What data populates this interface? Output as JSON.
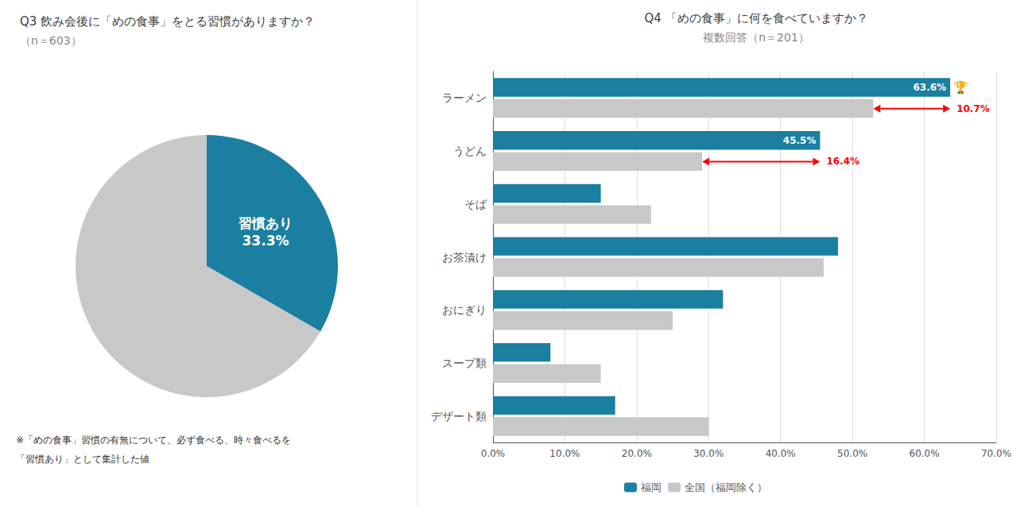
{
  "chart_data": [
    {
      "type": "pie",
      "title": "Q3 飲み会後に「めの食事」をとる習慣がありますか？",
      "subtitle": "（n＝603）",
      "categories": [
        "習慣あり",
        null
      ],
      "values": [
        33.3,
        66.7
      ],
      "value_labels": [
        "33.3%",
        null
      ],
      "colors": [
        "#1a7fa0",
        "#c8c8c8"
      ],
      "data_labels": true,
      "annotations": [
        "※「めの食事」習慣の有無について、必ず食べる、時々食べるを",
        "「習慣あり」として集計した値"
      ]
    },
    {
      "type": "bar",
      "title": "Q4 「めの食事」に何を食べていますか？",
      "subtitle": "複数回答（n＝201）",
      "orientation": "horizontal",
      "categories": [
        "ラーメン",
        "うどん",
        "そば",
        "お茶漬け",
        "おにぎり",
        "スープ類",
        "デザート類"
      ],
      "series": [
        {
          "name": "福岡",
          "color": "#1a7fa0",
          "values": [
            63.6,
            45.5,
            15.0,
            48.0,
            32.0,
            8.0,
            17.0
          ],
          "value_labels": [
            "63.6%",
            "45.5%",
            null,
            null,
            null,
            null,
            null
          ]
        },
        {
          "name": "全国（福岡除く）",
          "color": "#c8c8c8",
          "values": [
            52.9,
            29.1,
            22.0,
            46.0,
            25.0,
            15.0,
            30.0
          ]
        }
      ],
      "xlim": [
        0,
        70.0
      ],
      "xticks": [
        {
          "value": 0,
          "label": "0.0%"
        },
        {
          "value": 10,
          "label": "10.0%"
        },
        {
          "value": 20,
          "label": "20.0%"
        },
        {
          "value": 30,
          "label": "30.0%"
        },
        {
          "value": 40,
          "label": "40.0%"
        },
        {
          "value": 50,
          "label": "50.0%"
        },
        {
          "value": 60,
          "label": "60.0%"
        },
        {
          "value": 70,
          "label": "70.0%"
        }
      ],
      "grid": true,
      "legend": "bottom",
      "data_labels": true,
      "annotations": [
        {
          "text": "10.7%",
          "category": "ラーメン",
          "series": "全国（福岡除く）",
          "color": "red",
          "arrow": true
        },
        {
          "text": "16.4%",
          "category": "うどん",
          "series": "全国（福岡除く）",
          "color": "red",
          "arrow": true
        },
        {
          "text": "🏆",
          "category": "ラーメン",
          "series": "福岡"
        }
      ]
    }
  ]
}
